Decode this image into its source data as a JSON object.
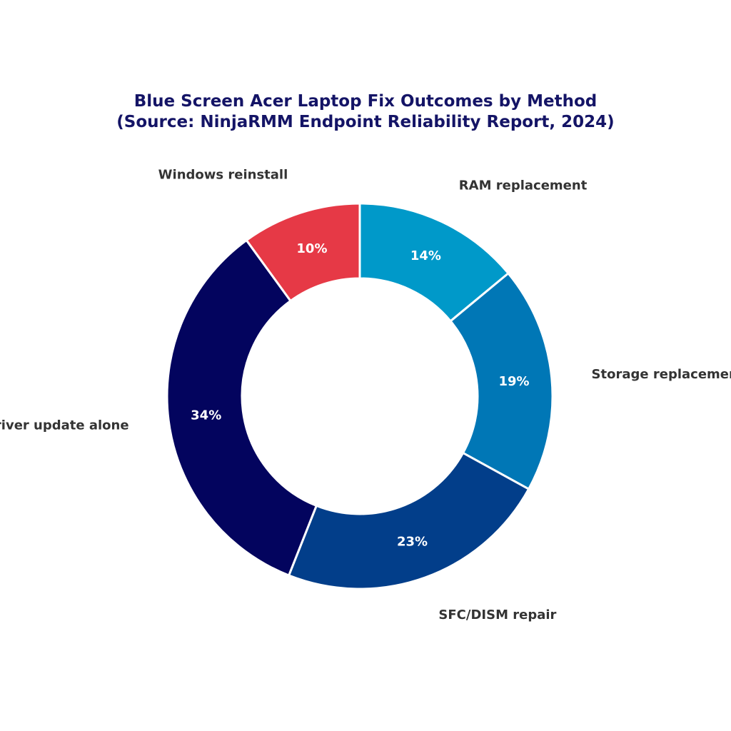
{
  "chart_data": {
    "type": "pie",
    "donut": true,
    "title": "Blue Screen Acer Laptop Fix Outcomes by Method",
    "subtitle": "(Source: NinjaRMM Endpoint Reliability Report, 2024)",
    "start_angle_deg": 90,
    "direction": "clockwise",
    "slices": [
      {
        "label": "RAM replacement",
        "value": 14,
        "value_label": "14%",
        "color": "#0099c9"
      },
      {
        "label": "Storage replacement",
        "value": 19,
        "value_label": "19%",
        "color": "#0077b6"
      },
      {
        "label": "SFC/DISM repair",
        "value": 23,
        "value_label": "23%",
        "color": "#023e8a"
      },
      {
        "label": "Driver update alone",
        "value": 34,
        "value_label": "34%",
        "color": "#03045e"
      },
      {
        "label": "Windows reinstall",
        "value": 10,
        "value_label": "10%",
        "color": "#e63946"
      }
    ]
  },
  "colors": {
    "title": "#141466",
    "outer_label": "#333333",
    "value_label": "#ffffff",
    "slice_border": "#ffffff"
  }
}
